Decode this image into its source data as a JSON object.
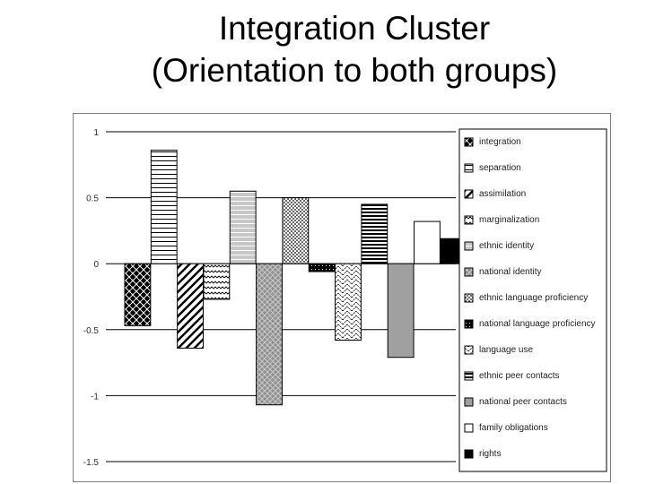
{
  "slide": {
    "title_line1": "Integration Cluster",
    "title_line2": "(Orientation to both groups)"
  },
  "chart_data": {
    "type": "bar",
    "title": "Integration Cluster (Orientation to both groups)",
    "ylim": [
      -1.5,
      1
    ],
    "yticks": [
      1,
      0.5,
      0,
      -0.5,
      -1,
      -1.5
    ],
    "ytick_labels": [
      "1",
      "0.5",
      "0",
      "-0.5",
      "-1",
      "-1.5"
    ],
    "grid": true,
    "legend_position": "right",
    "series": [
      {
        "name": "integration",
        "value": -0.47,
        "pattern": "checker"
      },
      {
        "name": "separation",
        "value": 0.86,
        "pattern": "hlines"
      },
      {
        "name": "assimilation",
        "value": -0.64,
        "pattern": "diag-wide"
      },
      {
        "name": "marginalization",
        "value": -0.27,
        "pattern": "zigzag"
      },
      {
        "name": "ethnic identity",
        "value": 0.55,
        "pattern": "hlines-gray"
      },
      {
        "name": "national identity",
        "value": -1.07,
        "pattern": "diag-gray"
      },
      {
        "name": "ethnic language proficiency",
        "value": 0.5,
        "pattern": "dots"
      },
      {
        "name": "national language proficiency",
        "value": -0.06,
        "pattern": "checker-small"
      },
      {
        "name": "language use",
        "value": -0.58,
        "pattern": "zigzag-open"
      },
      {
        "name": "ethnic peer contacts",
        "value": 0.45,
        "pattern": "hlines-bold"
      },
      {
        "name": "national peer contacts",
        "value": -0.71,
        "pattern": "gray"
      },
      {
        "name": "family obligations",
        "value": 0.32,
        "pattern": "white"
      },
      {
        "name": "rights",
        "value": 0.19,
        "pattern": "black"
      }
    ]
  }
}
